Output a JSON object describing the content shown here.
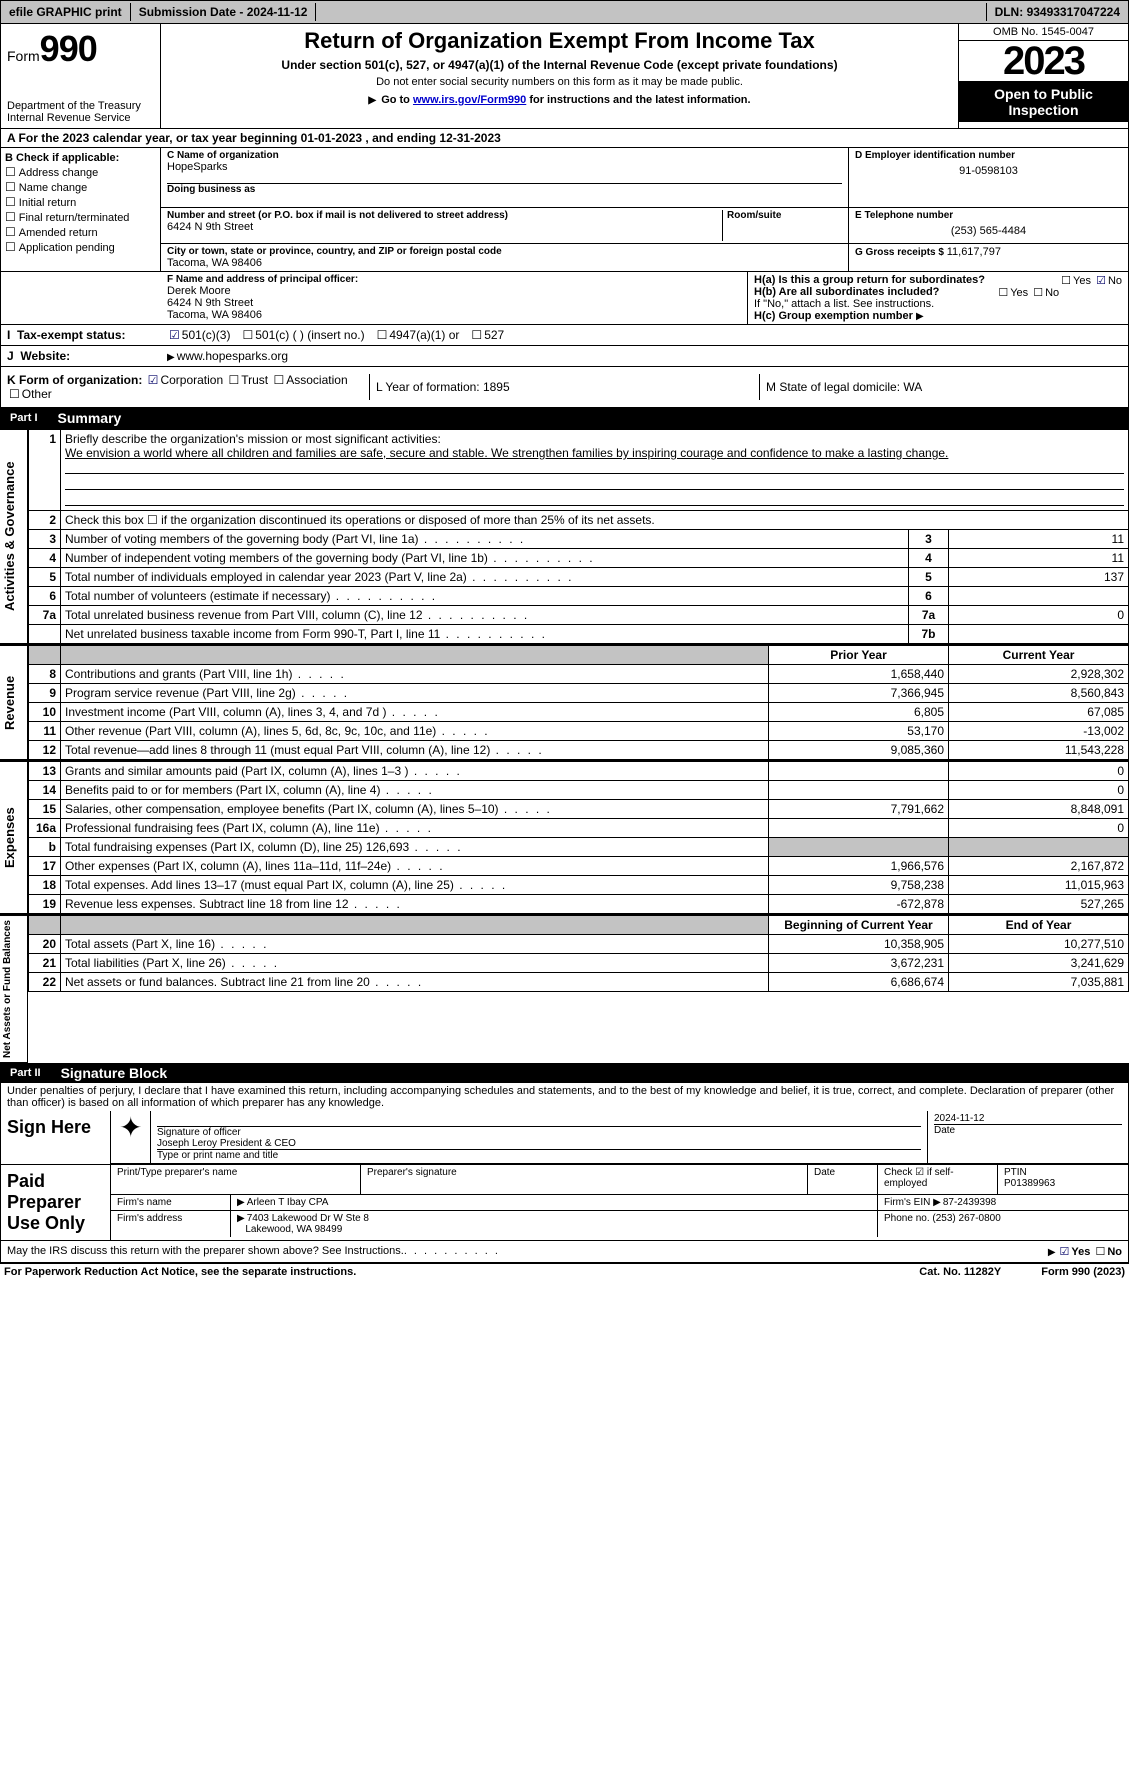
{
  "topbar": {
    "efile": "efile GRAPHIC print",
    "submission_label": "Submission Date - ",
    "submission_date": "2024-11-12",
    "dln_label": "DLN: ",
    "dln": "93493317047224"
  },
  "header": {
    "form_prefix": "Form",
    "form_number": "990",
    "dept1": "Department of the Treasury",
    "dept2": "Internal Revenue Service",
    "title": "Return of Organization Exempt From Income Tax",
    "subtitle": "Under section 501(c), 527, or 4947(a)(1) of the Internal Revenue Code (except private foundations)",
    "note1": "Do not enter social security numbers on this form as it may be made public.",
    "note2_prefix": "Go to ",
    "note2_link": "www.irs.gov/Form990",
    "note2_suffix": " for instructions and the latest information.",
    "omb": "OMB No. 1545-0047",
    "year": "2023",
    "open": "Open to Public Inspection"
  },
  "line_a": {
    "text_prefix": "A For the 2023 calendar year, or tax year beginning ",
    "begin": "01-01-2023",
    "mid": "  , and ending ",
    "end": "12-31-2023"
  },
  "box_b": {
    "title": "B Check if applicable:",
    "opts": [
      "Address change",
      "Name change",
      "Initial return",
      "Final return/terminated",
      "Amended return",
      "Application pending"
    ]
  },
  "box_c": {
    "c_label": "C Name of organization",
    "org_name": "HopeSparks",
    "dba_label": "Doing business as",
    "dba": "",
    "addr_label": "Number and street (or P.O. box if mail is not delivered to street address)",
    "room_label": "Room/suite",
    "street": "6424 N 9th Street",
    "city_label": "City or town, state or province, country, and ZIP or foreign postal code",
    "city": "Tacoma, WA  98406"
  },
  "box_d": {
    "label": "D Employer identification number",
    "ein": "91-0598103",
    "e_label": "E Telephone number",
    "phone": "(253) 565-4484",
    "g_label": "G Gross receipts $ ",
    "gross": "11,617,797"
  },
  "box_f": {
    "label": "F  Name and address of principal officer:",
    "name": "Derek Moore",
    "street": "6424 N 9th Street",
    "city": "Tacoma, WA  98406"
  },
  "box_h": {
    "ha": "H(a)  Is this a group return for subordinates?",
    "hb": "H(b)  Are all subordinates included?",
    "hb_note": "If \"No,\" attach a list. See instructions.",
    "hc": "H(c)  Group exemption number",
    "yes": "Yes",
    "no": "No"
  },
  "row_i": {
    "lab": "Tax-exempt status:",
    "opts": [
      "501(c)(3)",
      "501(c) (  ) (insert no.)",
      "4947(a)(1) or",
      "527"
    ]
  },
  "row_j": {
    "lab": "Website:",
    "val": "www.hopesparks.org"
  },
  "row_k": {
    "k_lab": "K Form of organization:",
    "k_opts": [
      "Corporation",
      "Trust",
      "Association",
      "Other"
    ],
    "l": "L Year of formation: 1895",
    "m": "M State of legal domicile: WA"
  },
  "parts": {
    "p1": "Part I",
    "p1t": "Summary",
    "p2": "Part II",
    "p2t": "Signature Block"
  },
  "sidelabels": {
    "gov": "Activities & Governance",
    "rev": "Revenue",
    "exp": "Expenses",
    "net": "Net Assets or Fund Balances"
  },
  "summary": {
    "l1_label": "Briefly describe the organization's mission or most significant activities:",
    "l1_text": "We envision a world where all children and families are safe, secure and stable. We strengthen families by inspiring courage and confidence to make a lasting change.",
    "l2": "Check this box ☐ if the organization discontinued its operations or disposed of more than 25% of its net assets.",
    "rows_gov": [
      {
        "n": "3",
        "t": "Number of voting members of the governing body (Part VI, line 1a)",
        "box": "3",
        "v": "11"
      },
      {
        "n": "4",
        "t": "Number of independent voting members of the governing body (Part VI, line 1b)",
        "box": "4",
        "v": "11"
      },
      {
        "n": "5",
        "t": "Total number of individuals employed in calendar year 2023 (Part V, line 2a)",
        "box": "5",
        "v": "137"
      },
      {
        "n": "6",
        "t": "Total number of volunteers (estimate if necessary)",
        "box": "6",
        "v": ""
      },
      {
        "n": "7a",
        "t": "Total unrelated business revenue from Part VIII, column (C), line 12",
        "box": "7a",
        "v": "0"
      },
      {
        "n": "",
        "t": "Net unrelated business taxable income from Form 990-T, Part I, line 11",
        "box": "7b",
        "v": ""
      }
    ],
    "yr_hdr": {
      "py": "Prior Year",
      "cy": "Current Year"
    },
    "rows_rev": [
      {
        "n": "8",
        "t": "Contributions and grants (Part VIII, line 1h)",
        "py": "1,658,440",
        "cy": "2,928,302"
      },
      {
        "n": "9",
        "t": "Program service revenue (Part VIII, line 2g)",
        "py": "7,366,945",
        "cy": "8,560,843"
      },
      {
        "n": "10",
        "t": "Investment income (Part VIII, column (A), lines 3, 4, and 7d )",
        "py": "6,805",
        "cy": "67,085"
      },
      {
        "n": "11",
        "t": "Other revenue (Part VIII, column (A), lines 5, 6d, 8c, 9c, 10c, and 11e)",
        "py": "53,170",
        "cy": "-13,002"
      },
      {
        "n": "12",
        "t": "Total revenue—add lines 8 through 11 (must equal Part VIII, column (A), line 12)",
        "py": "9,085,360",
        "cy": "11,543,228"
      }
    ],
    "rows_exp": [
      {
        "n": "13",
        "t": "Grants and similar amounts paid (Part IX, column (A), lines 1–3 )",
        "py": "",
        "cy": "0"
      },
      {
        "n": "14",
        "t": "Benefits paid to or for members (Part IX, column (A), line 4)",
        "py": "",
        "cy": "0"
      },
      {
        "n": "15",
        "t": "Salaries, other compensation, employee benefits (Part IX, column (A), lines 5–10)",
        "py": "7,791,662",
        "cy": "8,848,091"
      },
      {
        "n": "16a",
        "t": "Professional fundraising fees (Part IX, column (A), line 11e)",
        "py": "",
        "cy": "0"
      },
      {
        "n": "b",
        "t": "Total fundraising expenses (Part IX, column (D), line 25) 126,693",
        "py": "__grey__",
        "cy": "__grey__"
      },
      {
        "n": "17",
        "t": "Other expenses (Part IX, column (A), lines 11a–11d, 11f–24e)",
        "py": "1,966,576",
        "cy": "2,167,872"
      },
      {
        "n": "18",
        "t": "Total expenses. Add lines 13–17 (must equal Part IX, column (A), line 25)",
        "py": "9,758,238",
        "cy": "11,015,963"
      },
      {
        "n": "19",
        "t": "Revenue less expenses. Subtract line 18 from line 12",
        "py": "-672,878",
        "cy": "527,265"
      }
    ],
    "net_hdr": {
      "b": "Beginning of Current Year",
      "e": "End of Year"
    },
    "rows_net": [
      {
        "n": "20",
        "t": "Total assets (Part X, line 16)",
        "py": "10,358,905",
        "cy": "10,277,510"
      },
      {
        "n": "21",
        "t": "Total liabilities (Part X, line 26)",
        "py": "3,672,231",
        "cy": "3,241,629"
      },
      {
        "n": "22",
        "t": "Net assets or fund balances. Subtract line 21 from line 20",
        "py": "6,686,674",
        "cy": "7,035,881"
      }
    ]
  },
  "sig": {
    "decl": "Under penalties of perjury, I declare that I have examined this return, including accompanying schedules and statements, and to the best of my knowledge and belief, it is true, correct, and complete. Declaration of preparer (other than officer) is based on all information of which preparer has any knowledge.",
    "sign_here": "Sign Here",
    "sig_off_l": "Signature of officer",
    "sig_date": "2024-11-12",
    "sig_name": "Joseph Leroy  President & CEO",
    "sig_type_l": "Type or print name and title",
    "date_l": "Date",
    "paid": "Paid Preparer Use Only",
    "pp_name_l": "Print/Type preparer's name",
    "pp_sig_l": "Preparer's signature",
    "pp_check_l": "Check ☑ if self-employed",
    "ptin_l": "PTIN",
    "ptin": "P01389963",
    "firm_name_l": "Firm's name",
    "firm_name": "Arleen T Ibay CPA",
    "firm_ein_l": "Firm's EIN",
    "firm_ein": "87-2439398",
    "firm_addr_l": "Firm's address",
    "firm_addr1": "7403 Lakewood Dr W Ste 8",
    "firm_addr2": "Lakewood, WA  98499",
    "phone_l": "Phone no.",
    "phone": "(253) 267-0800",
    "discuss": "May the IRS discuss this return with the preparer shown above? See Instructions."
  },
  "footer": {
    "left": "For Paperwork Reduction Act Notice, see the separate instructions.",
    "mid": "Cat. No. 11282Y",
    "right": "Form 990 (2023)"
  }
}
